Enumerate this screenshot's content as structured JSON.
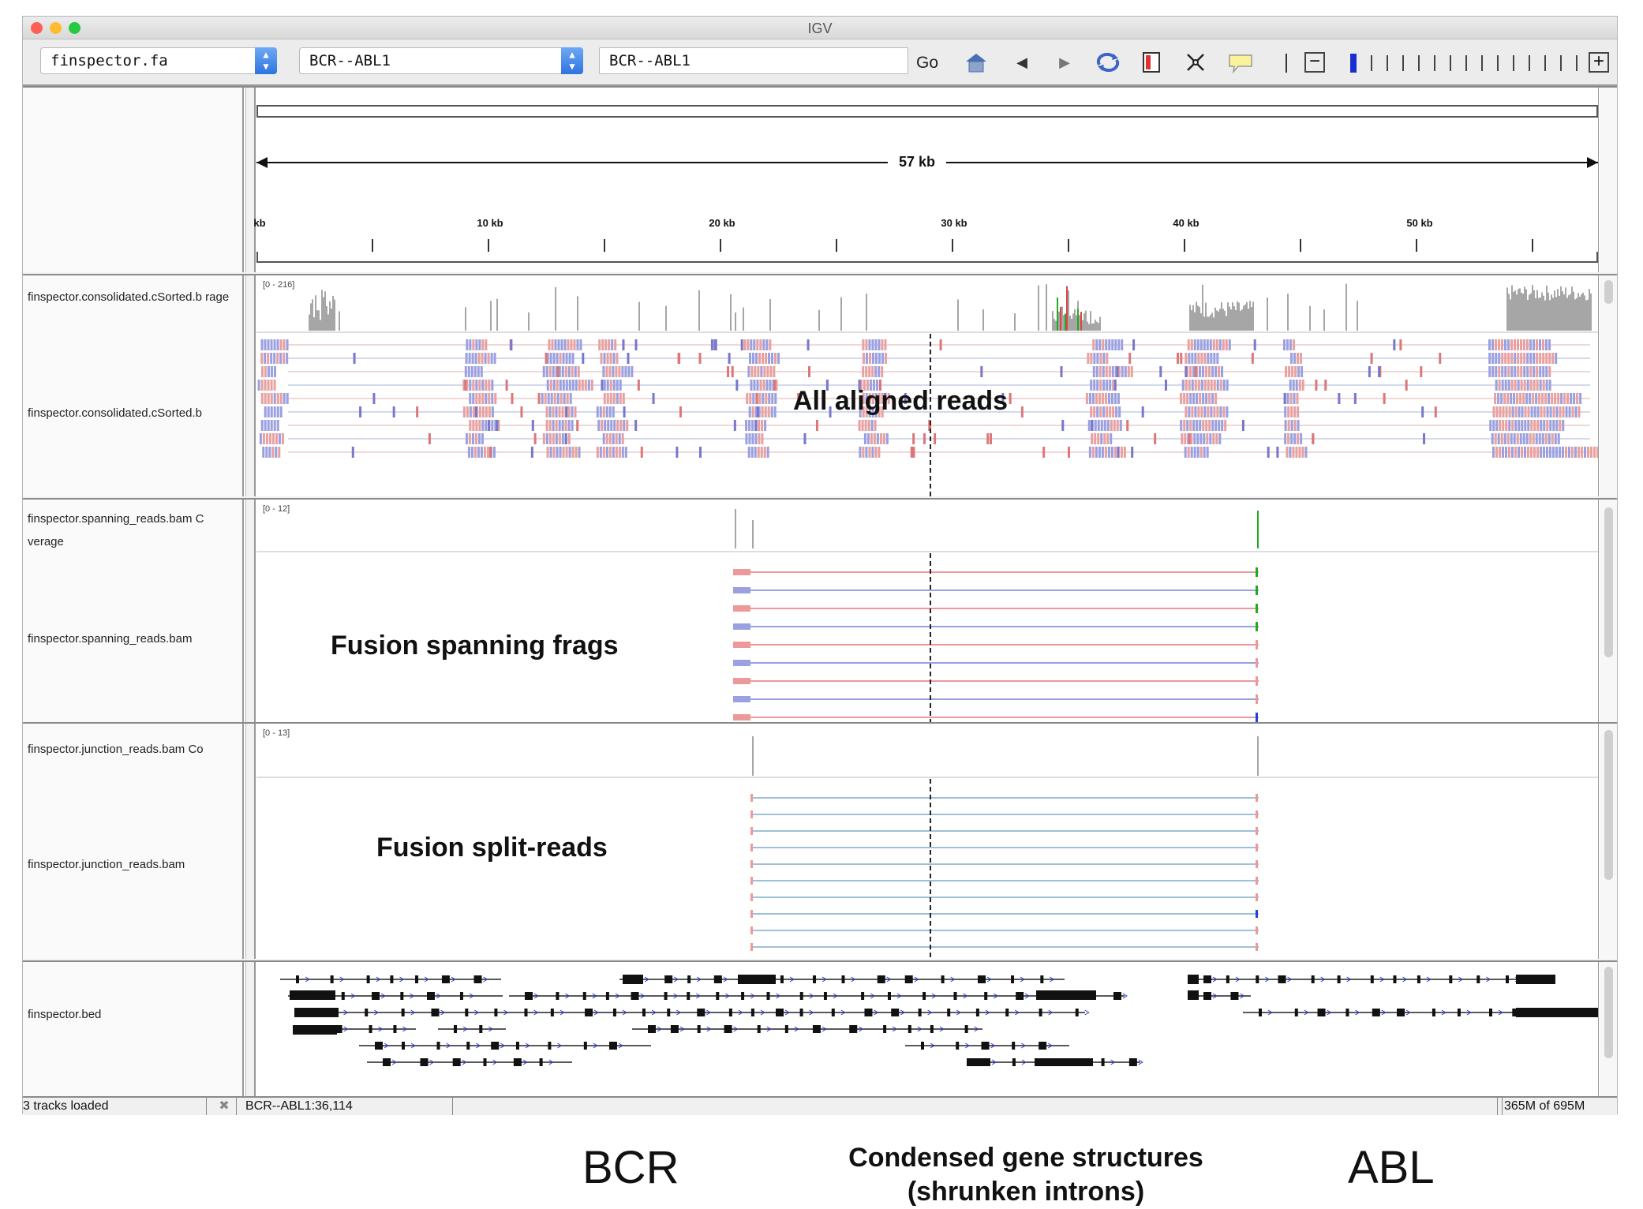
{
  "window": {
    "title": "IGV"
  },
  "toolbar": {
    "genome_select": "finspector.fa",
    "chrom_select": "BCR--ABL1",
    "locus_input": "BCR--ABL1",
    "go_label": "Go",
    "icons": [
      "home-icon",
      "back-icon",
      "forward-icon",
      "refresh-icon",
      "roi-icon",
      "fit-window-icon",
      "popup-info-icon",
      "zoom-out-icon",
      "zoom-slider",
      "zoom-in-icon"
    ]
  },
  "ruler": {
    "span_label": "57 kb",
    "ticks": [
      "kb",
      "10 kb",
      "20 kb",
      "30 kb",
      "40 kb",
      "50 kb"
    ]
  },
  "tracks": [
    {
      "coverage_name": "finspector.consolidated.cSorted.b rage",
      "range": "[0 - 216]",
      "alignment_name": "finspector.consolidated.cSorted.b",
      "overlay": "All aligned reads"
    },
    {
      "coverage_name": "finspector.spanning_reads.bam C verage",
      "range": "[0 - 12]",
      "alignment_name": "finspector.spanning_reads.bam",
      "overlay": "Fusion spanning frags"
    },
    {
      "coverage_name": "finspector.junction_reads.bam Co",
      "range": "[0 - 13]",
      "alignment_name": "finspector.junction_reads.bam",
      "overlay": "Fusion split-reads"
    }
  ],
  "feature_track": {
    "name": "finspector.bed"
  },
  "status": {
    "tracks_loaded": "3 tracks loaded",
    "position": "BCR--ABL1:36,114",
    "memory": "365M of 695M"
  },
  "captions": {
    "left_gene": "BCR",
    "middle": "Condensed gene structures\n(shrunken introns)",
    "right_gene": "ABL"
  },
  "colors": {
    "close": "#fd5f57",
    "minimize": "#febc2e",
    "zoom": "#28c840",
    "coverage": "#a6a6a6",
    "read_pink": "#e8a0a0",
    "read_blue": "#9aa0e0",
    "connector_red": "#e99",
    "connector_blue": "#99c"
  }
}
